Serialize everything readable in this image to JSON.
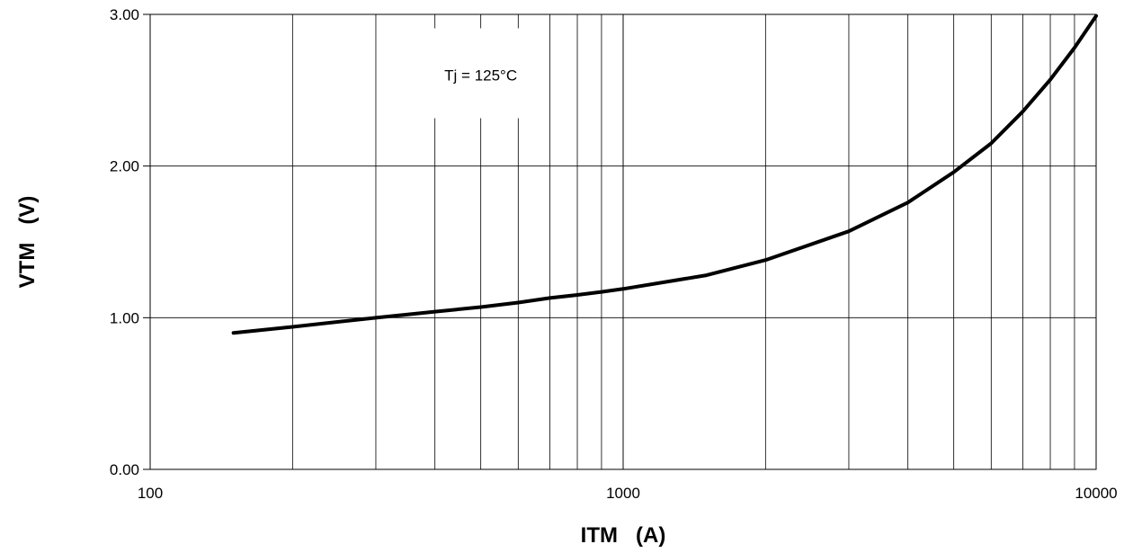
{
  "chart_data": {
    "type": "line",
    "title": "",
    "xlabel": "ITM   (A)",
    "ylabel": "VTM   (V)",
    "x_scale": "log",
    "xlim": [
      100,
      10000
    ],
    "ylim": [
      0,
      3
    ],
    "grid": true,
    "x_ticks": [
      {
        "value": 100,
        "label": "100"
      },
      {
        "value": 1000,
        "label": "1000"
      },
      {
        "value": 10000,
        "label": "10000"
      }
    ],
    "y_ticks": [
      {
        "value": 0,
        "label": "0.00"
      },
      {
        "value": 1,
        "label": "1.00"
      },
      {
        "value": 2,
        "label": "2.00"
      },
      {
        "value": 3,
        "label": "3.00"
      }
    ],
    "annotation": {
      "text": "Tj = 125°C",
      "x": 500,
      "y": 2.6
    },
    "series": [
      {
        "color": "#000000",
        "x": [
          150,
          200,
          300,
          400,
          500,
          600,
          700,
          800,
          900,
          1000,
          1500,
          2000,
          3000,
          4000,
          5000,
          6000,
          7000,
          8000,
          9000,
          10000
        ],
        "y": [
          0.9,
          0.94,
          1.0,
          1.04,
          1.07,
          1.1,
          1.13,
          1.15,
          1.17,
          1.19,
          1.28,
          1.38,
          1.57,
          1.76,
          1.96,
          2.15,
          2.36,
          2.57,
          2.78,
          2.99
        ]
      }
    ]
  }
}
